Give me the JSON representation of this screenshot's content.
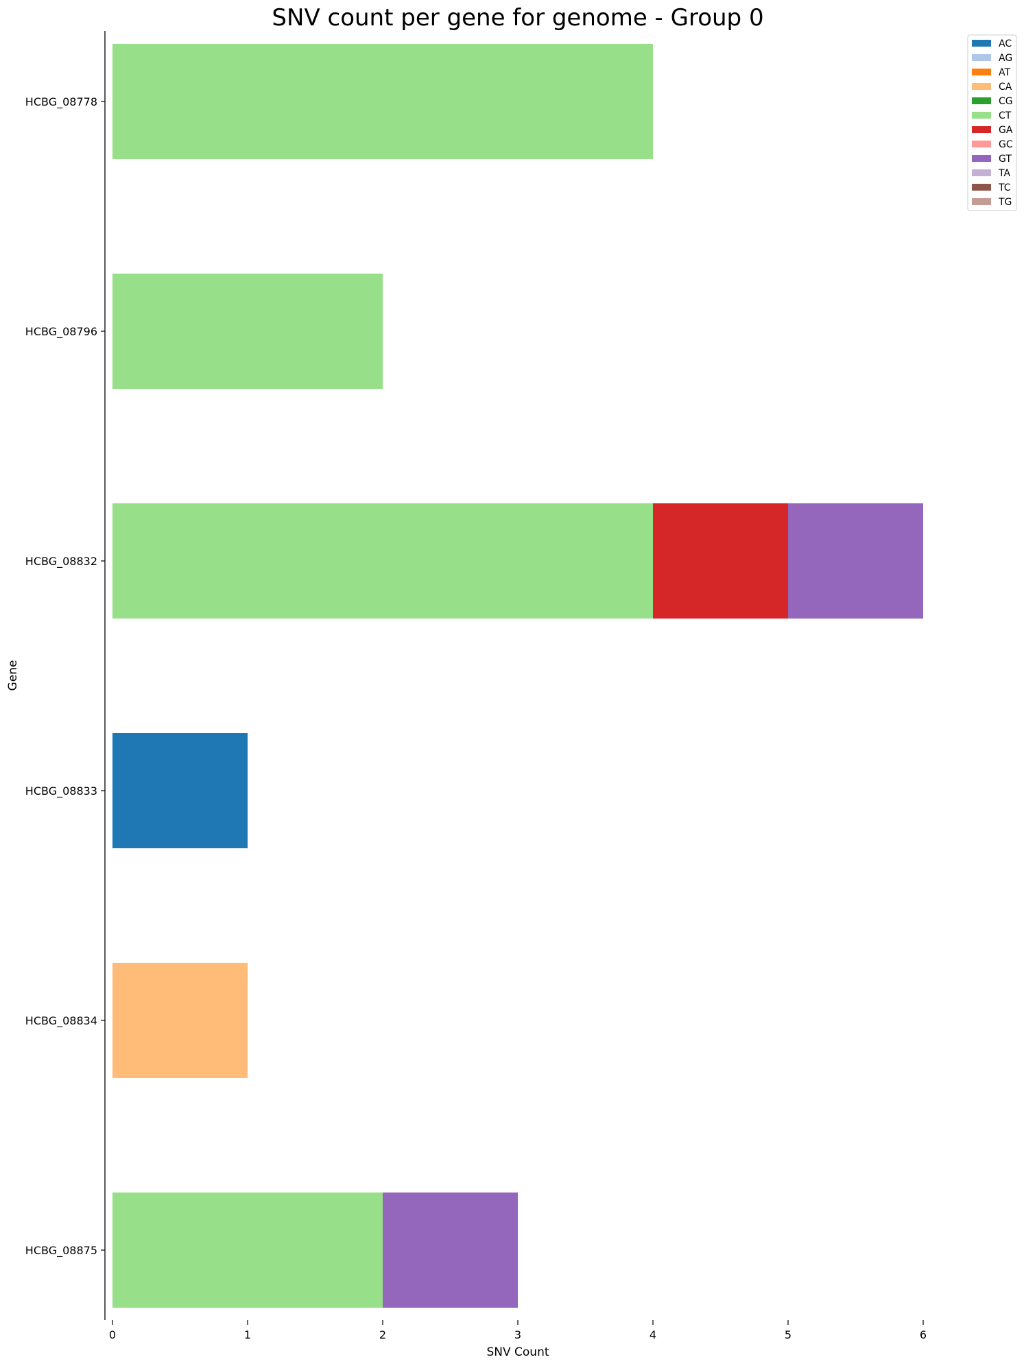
{
  "chart_data": {
    "type": "bar",
    "orientation": "horizontal",
    "stacked": true,
    "title": "SNV count per gene for genome - Group 0",
    "xlabel": "SNV Count",
    "ylabel": "Gene",
    "xlim": [
      0,
      6
    ],
    "xticks": [
      0,
      1,
      2,
      3,
      4,
      5,
      6
    ],
    "grid": false,
    "legend_position": "top-right, outside plot",
    "categories": [
      "HCBG_08778",
      "HCBG_08796",
      "HCBG_08832",
      "HCBG_08833",
      "HCBG_08834",
      "HCBG_08875"
    ],
    "series": [
      {
        "name": "AC",
        "color": "#1f77b4",
        "values": [
          0,
          0,
          0,
          1,
          0,
          0
        ]
      },
      {
        "name": "AG",
        "color": "#aec7e8",
        "values": [
          0,
          0,
          0,
          0,
          0,
          0
        ]
      },
      {
        "name": "AT",
        "color": "#ff7f0e",
        "values": [
          0,
          0,
          0,
          0,
          0,
          0
        ]
      },
      {
        "name": "CA",
        "color": "#ffbb78",
        "values": [
          0,
          0,
          0,
          0,
          1,
          0
        ]
      },
      {
        "name": "CG",
        "color": "#2ca02c",
        "values": [
          0,
          0,
          0,
          0,
          0,
          0
        ]
      },
      {
        "name": "CT",
        "color": "#98df8a",
        "values": [
          4,
          2,
          4,
          0,
          0,
          2
        ]
      },
      {
        "name": "GA",
        "color": "#d62728",
        "values": [
          0,
          0,
          1,
          0,
          0,
          0
        ]
      },
      {
        "name": "GC",
        "color": "#ff9896",
        "values": [
          0,
          0,
          0,
          0,
          0,
          0
        ]
      },
      {
        "name": "GT",
        "color": "#9467bd",
        "values": [
          0,
          0,
          1,
          0,
          0,
          1
        ]
      },
      {
        "name": "TA",
        "color": "#c5b0d5",
        "values": [
          0,
          0,
          0,
          0,
          0,
          0
        ]
      },
      {
        "name": "TC",
        "color": "#8c564b",
        "values": [
          0,
          0,
          0,
          0,
          0,
          0
        ]
      },
      {
        "name": "TG",
        "color": "#c49c94",
        "values": [
          0,
          0,
          0,
          0,
          0,
          0
        ]
      }
    ]
  }
}
